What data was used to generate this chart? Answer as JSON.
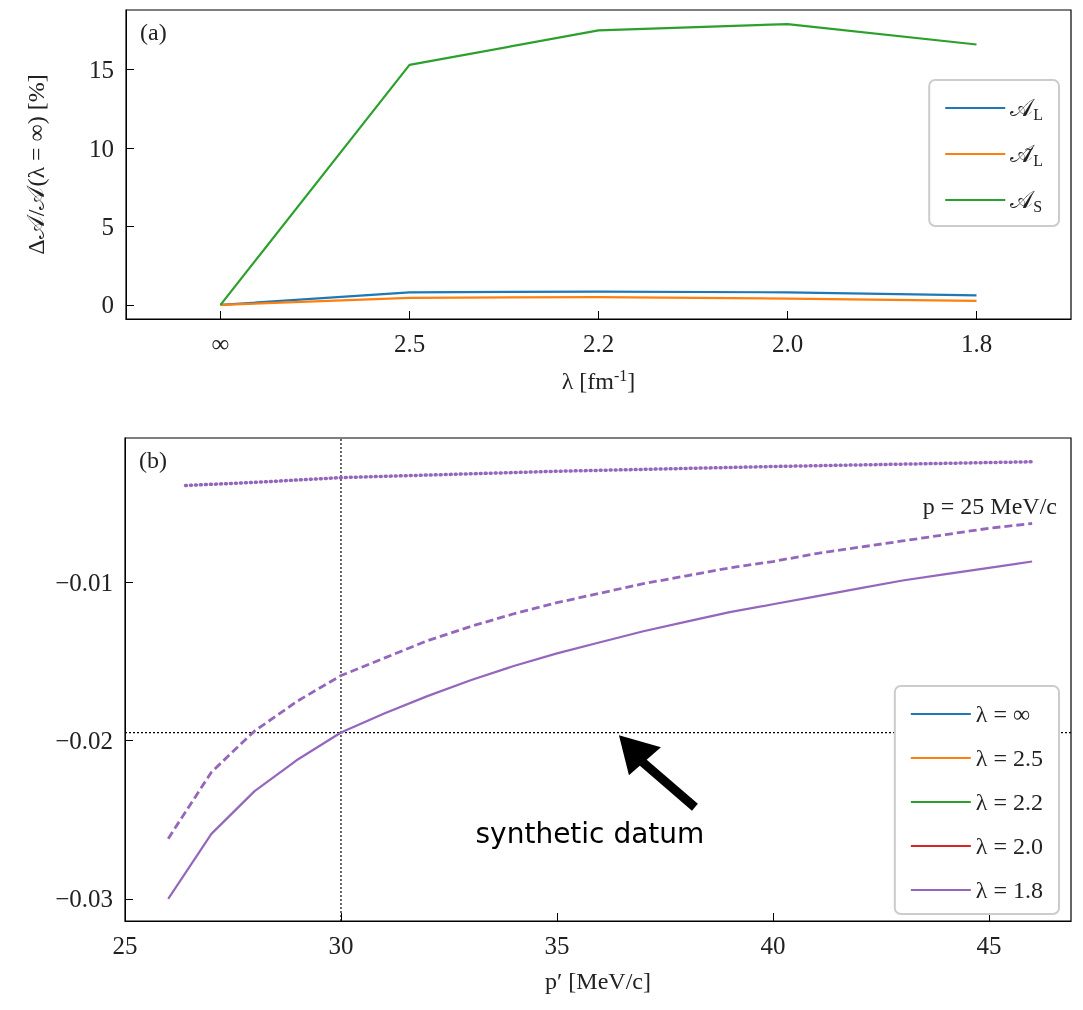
{
  "chart_data": [
    {
      "type": "line",
      "annotations": [
        "(a)"
      ],
      "xlabel": "λ [fm$^{-1}$]",
      "ylabel": "Δ𝒜/𝒜(λ = ∞) [%]",
      "categories": [
        "∞",
        "2.5",
        "2.2",
        "2.0",
        "1.8"
      ],
      "series": [
        {
          "name": "𝒜$_{L}$",
          "color": "#1f77b4",
          "values": [
            0,
            0.8,
            0.85,
            0.8,
            0.6
          ]
        },
        {
          "name": "𝒜̃$_{L}$",
          "color": "#ff7f0e",
          "values": [
            0,
            0.45,
            0.5,
            0.4,
            0.25
          ]
        },
        {
          "name": "𝒜$_{S}$",
          "color": "#2ca02c",
          "values": [
            0,
            15.3,
            17.5,
            17.9,
            16.6
          ]
        }
      ],
      "ylim": [
        -0.9,
        18.8
      ],
      "yticks": [
        0,
        5,
        10,
        15
      ],
      "grid": false,
      "legend": "right",
      "marker": "none",
      "line_style": "solid"
    },
    {
      "type": "line",
      "annotations": [
        "(b)",
        "p = 25 MeV/c",
        "synthetic datum"
      ],
      "xlabel": "p′ [MeV/c]",
      "x": [
        26,
        27,
        28,
        29,
        30,
        31,
        32,
        33,
        34,
        35,
        36,
        37,
        38,
        39,
        40,
        41,
        42,
        43,
        44,
        45,
        46
      ],
      "series": [
        {
          "name": "λ = ∞",
          "color": "#1f77b4",
          "values": [
            null,
            null,
            null,
            null,
            null,
            null,
            null,
            null,
            null,
            null,
            null,
            null,
            null,
            null,
            null,
            null,
            null,
            null,
            null,
            null,
            null
          ]
        },
        {
          "name": "λ = 2.5",
          "color": "#ff7f0e",
          "values": [
            null,
            null,
            null,
            null,
            null,
            null,
            null,
            null,
            null,
            null,
            null,
            null,
            null,
            null,
            null,
            null,
            null,
            null,
            null,
            null,
            null
          ]
        },
        {
          "name": "λ = 2.2",
          "color": "#2ca02c",
          "values": [
            null,
            null,
            null,
            null,
            null,
            null,
            null,
            null,
            null,
            null,
            null,
            null,
            null,
            null,
            null,
            null,
            null,
            null,
            null,
            null,
            null
          ]
        },
        {
          "name": "λ = 2.0",
          "color": "#d62728",
          "values": [
            null,
            null,
            null,
            null,
            null,
            null,
            null,
            null,
            null,
            null,
            null,
            null,
            null,
            null,
            null,
            null,
            null,
            null,
            null,
            null,
            null
          ]
        },
        {
          "name": "λ = 1.8",
          "color": "#9467bd",
          "values": [
            -0.03,
            -0.0259,
            -0.0232,
            -0.0212,
            -0.0195,
            -0.0183,
            -0.0172,
            -0.0162,
            -0.0153,
            -0.0145,
            -0.0138,
            -0.0131,
            -0.0125,
            -0.0119,
            -0.0114,
            -0.0109,
            -0.0104,
            -0.0099,
            -0.0095,
            -0.0091,
            -0.0087
          ]
        },
        {
          "color": "#9467bd",
          "line_style": "dashed",
          "values": [
            -0.0262,
            -0.022,
            -0.0194,
            -0.0175,
            -0.0159,
            -0.0148,
            -0.0137,
            -0.0128,
            -0.012,
            -0.0113,
            -0.0107,
            -0.0101,
            -0.0096,
            -0.0091,
            -0.0087,
            -0.0082,
            -0.0078,
            -0.0074,
            -0.007,
            -0.0066,
            -0.0063
          ]
        },
        {
          "color": "#9467bd",
          "line_style": "dotted",
          "x": [
            26.4,
            28,
            30,
            35,
            40,
            46
          ],
          "values": [
            -0.0039,
            -0.0037,
            -0.0034,
            -0.003,
            -0.0027,
            -0.0024
          ]
        }
      ],
      "xlim": [
        25,
        46.9
      ],
      "xticks": [
        25,
        30,
        35,
        40,
        45
      ],
      "ylim": [
        -0.0314,
        -0.0009
      ],
      "yticks": [
        -0.03,
        -0.02,
        -0.01
      ],
      "ref_lines": [
        {
          "axis": "x",
          "value": 30,
          "color": "#000000",
          "line_style": "dotted"
        },
        {
          "axis": "y",
          "value": -0.0195,
          "color": "#000000",
          "line_style": "dotted"
        }
      ],
      "grid": false,
      "legend": "bottom right",
      "marker": "none",
      "line_style": "solid"
    }
  ]
}
